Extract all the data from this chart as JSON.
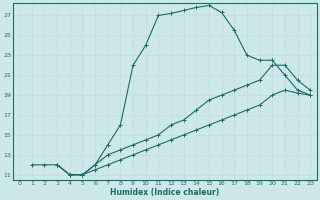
{
  "xlabel": "Humidex (Indice chaleur)",
  "ylabel": "",
  "bg_color": "#cce8e8",
  "grid_color": "#d0e8e8",
  "line_color": "#1a6b6b",
  "xlim": [
    -0.5,
    23.5
  ],
  "ylim": [
    10.5,
    28.2
  ],
  "xticks": [
    0,
    1,
    2,
    3,
    4,
    5,
    6,
    7,
    8,
    9,
    10,
    11,
    12,
    13,
    14,
    15,
    16,
    17,
    18,
    19,
    20,
    21,
    22,
    23
  ],
  "yticks": [
    11,
    13,
    15,
    17,
    19,
    21,
    23,
    25,
    27
  ],
  "line1_x": [
    1,
    2,
    3,
    4,
    5,
    6,
    7,
    8,
    9,
    10,
    11,
    12,
    13,
    14,
    15,
    16,
    17,
    18,
    19,
    20,
    21,
    22,
    23
  ],
  "line1_y": [
    12,
    12,
    12,
    11,
    11,
    12,
    14,
    16,
    22,
    24,
    27,
    27.2,
    27.5,
    27.8,
    28,
    27.3,
    25.5,
    23,
    22.5,
    22.5,
    21,
    19.5,
    19
  ],
  "line2_x": [
    3,
    4,
    5,
    6,
    7,
    8,
    9,
    10,
    11,
    12,
    13,
    14,
    15,
    16,
    17,
    18,
    19,
    20,
    21,
    22,
    23
  ],
  "line2_y": [
    12,
    11,
    11,
    12,
    13,
    13.5,
    14,
    14.5,
    15,
    16,
    16.5,
    17.5,
    18.5,
    19,
    19.5,
    20,
    20.5,
    22,
    22,
    20.5,
    19.5
  ],
  "line3_x": [
    3,
    4,
    5,
    6,
    7,
    8,
    9,
    10,
    11,
    12,
    13,
    14,
    15,
    16,
    17,
    18,
    19,
    20,
    21,
    22,
    23
  ],
  "line3_y": [
    12,
    11,
    11,
    11.5,
    12,
    12.5,
    13,
    13.5,
    14,
    14.5,
    15,
    15.5,
    16,
    16.5,
    17,
    17.5,
    18,
    19,
    19.5,
    19.2,
    19
  ]
}
